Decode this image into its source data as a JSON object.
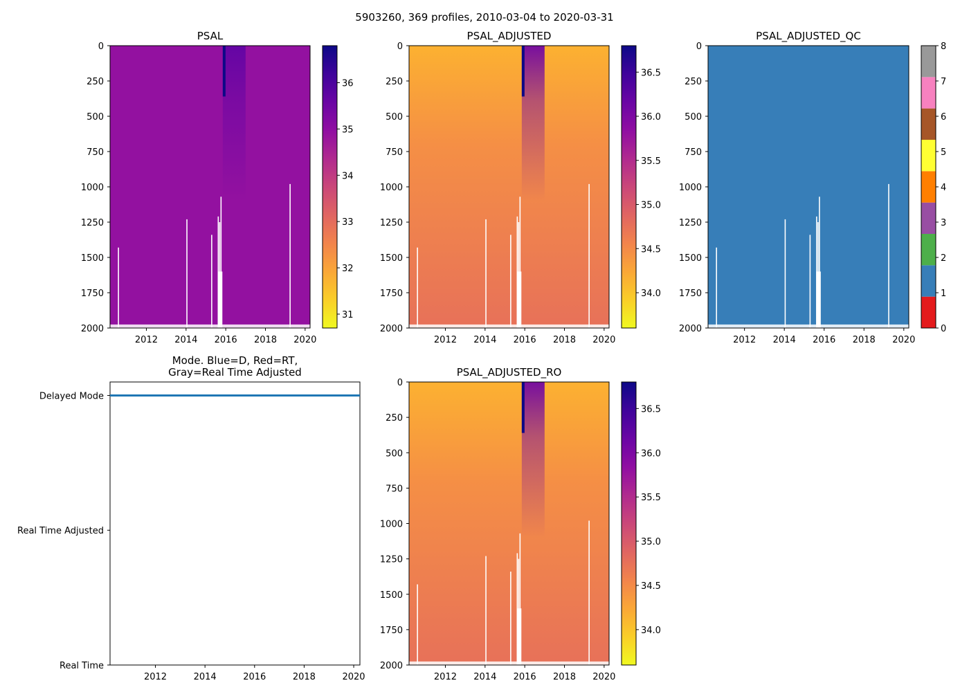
{
  "figure_title": "5903260, 369 profiles, 2010-03-04 to 2020-03-31",
  "chart_data": [
    {
      "type": "heatmap",
      "title": "PSAL",
      "xlabel": "",
      "ylabel": "",
      "x_range": [
        2010.17,
        2020.25
      ],
      "x_ticks": [
        "2012",
        "2014",
        "2016",
        "2018",
        "2020"
      ],
      "y_range": [
        0,
        2000
      ],
      "y_inverted": true,
      "y_ticks": [
        "0",
        "250",
        "500",
        "750",
        "1000",
        "1250",
        "1500",
        "1750",
        "2000"
      ],
      "colormap": "plasma_r",
      "colorbar": {
        "range": [
          30.7,
          36.8
        ],
        "ticks": [
          "31",
          "32",
          "33",
          "34",
          "35",
          "36"
        ]
      },
      "representative_value": 34.9,
      "anomaly": {
        "x_range": [
          2015.85,
          2017.0
        ],
        "value": 35.7
      }
    },
    {
      "type": "heatmap",
      "title": "PSAL_ADJUSTED",
      "xlabel": "",
      "ylabel": "",
      "x_range": [
        2010.17,
        2020.25
      ],
      "x_ticks": [
        "2012",
        "2014",
        "2016",
        "2018",
        "2020"
      ],
      "y_range": [
        0,
        2000
      ],
      "y_inverted": true,
      "y_ticks": [
        "0",
        "250",
        "500",
        "750",
        "1000",
        "1250",
        "1500",
        "1750",
        "2000"
      ],
      "colormap": "plasma_r",
      "colorbar": {
        "range": [
          33.6,
          36.8
        ],
        "ticks": [
          "34.0",
          "34.5",
          "35.0",
          "35.5",
          "36.0",
          "36.5"
        ]
      },
      "surface_value": 34.15,
      "deep_value": 34.75,
      "anomaly": {
        "x_range": [
          2015.85,
          2017.0
        ],
        "value": 36.1
      }
    },
    {
      "type": "heatmap",
      "title": "PSAL_ADJUSTED_QC",
      "xlabel": "",
      "ylabel": "",
      "x_range": [
        2010.17,
        2020.25
      ],
      "x_ticks": [
        "2012",
        "2014",
        "2016",
        "2018",
        "2020"
      ],
      "y_range": [
        0,
        2000
      ],
      "y_inverted": true,
      "y_ticks": [
        "0",
        "250",
        "500",
        "750",
        "1000",
        "1250",
        "1500",
        "1750",
        "2000"
      ],
      "qc_value": 1,
      "colorbar": {
        "range": [
          0,
          8
        ],
        "ticks": [
          "0",
          "1",
          "2",
          "3",
          "4",
          "5",
          "6",
          "7",
          "8"
        ],
        "colors": [
          "#e41a1c",
          "#377eb8",
          "#4daf4a",
          "#984ea3",
          "#ff7f00",
          "#ffff33",
          "#a65628",
          "#f781bf",
          "#999999"
        ]
      }
    },
    {
      "type": "line",
      "title": "Mode. Blue=D, Red=RT,\nGray=Real Time Adjusted",
      "title_lines": [
        "Mode. Blue=D, Red=RT,",
        "Gray=Real Time Adjusted"
      ],
      "xlabel": "",
      "ylabel": "",
      "x_range": [
        2010.17,
        2020.25
      ],
      "x_ticks": [
        "2012",
        "2014",
        "2016",
        "2018",
        "2020"
      ],
      "y_range": [
        0,
        2.1
      ],
      "y_ticks": [
        {
          "label": "Real Time",
          "value": 0
        },
        {
          "label": "Real Time Adjusted",
          "value": 1
        },
        {
          "label": "Delayed Mode",
          "value": 2
        }
      ],
      "series": [
        {
          "name": "D",
          "color": "#1f77b4",
          "x": [
            2010.17,
            2020.25
          ],
          "values": [
            2,
            2
          ]
        }
      ]
    },
    {
      "type": "heatmap",
      "title": "PSAL_ADJUSTED_RO",
      "xlabel": "",
      "ylabel": "",
      "x_range": [
        2010.17,
        2020.25
      ],
      "x_ticks": [
        "2012",
        "2014",
        "2016",
        "2018",
        "2020"
      ],
      "y_range": [
        0,
        2000
      ],
      "y_inverted": true,
      "y_ticks": [
        "0",
        "250",
        "500",
        "750",
        "1000",
        "1250",
        "1500",
        "1750",
        "2000"
      ],
      "colormap": "plasma_r",
      "colorbar": {
        "range": [
          33.6,
          36.8
        ],
        "ticks": [
          "34.0",
          "34.5",
          "35.0",
          "35.5",
          "36.0",
          "36.5"
        ]
      },
      "surface_value": 34.15,
      "deep_value": 34.75,
      "anomaly": {
        "x_range": [
          2015.85,
          2017.0
        ],
        "value": 36.1
      }
    }
  ],
  "gaps": {
    "profiles": [
      {
        "x": 2010.6,
        "depth": 1430
      },
      {
        "x": 2014.05,
        "depth": 1230
      },
      {
        "x": 2015.3,
        "depth": 1340
      },
      {
        "x": 2015.63,
        "depth": 1210
      },
      {
        "x": 2015.7,
        "depth": 1250
      },
      {
        "x": 2015.77,
        "depth": 1070
      },
      {
        "x": 2019.25,
        "depth": 980
      }
    ],
    "bottom_fringe_depth": 1975
  }
}
